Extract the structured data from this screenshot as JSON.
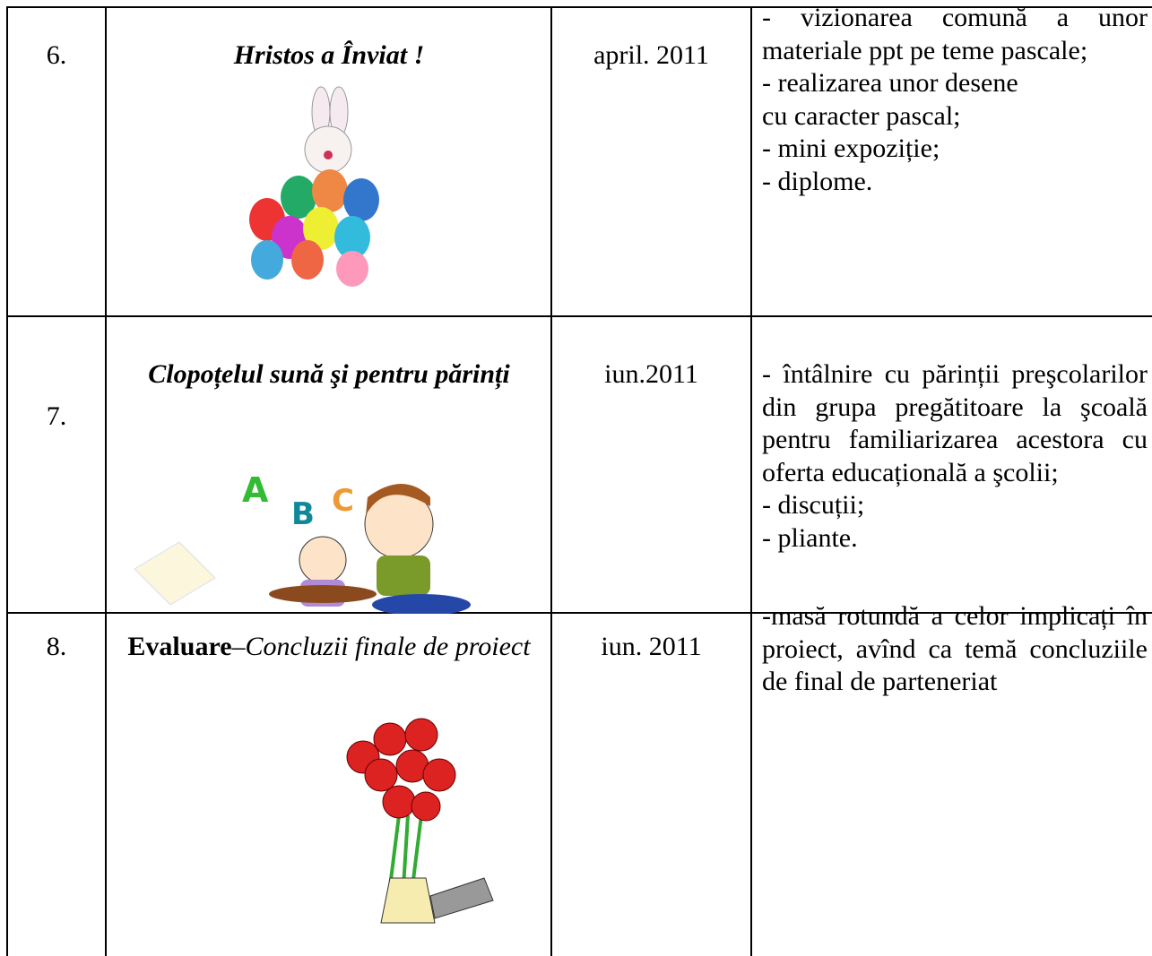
{
  "table": {
    "rows": [
      {
        "number": "6.",
        "title": "Hristos a Înviat !",
        "date": "april. 2011",
        "activities": [
          "- vizionarea comună a unor materiale ppt pe teme pascale;",
          "- realizarea unor desene",
          "cu caracter pascal;",
          "- mini expoziție;",
          "- diplome."
        ]
      },
      {
        "number": "7.",
        "title": "Clopoțelul sună şi pentru părinți",
        "date": "iun.2011",
        "activities": [
          "- întâlnire cu părinții preşcolarilor din grupa pregătitoare la şcoală pentru familiarizarea acestora cu oferta educațională a şcolii;",
          "- discuții;",
          "- pliante."
        ]
      },
      {
        "number": "8.",
        "title_bold": "Evaluare",
        "title_italic": "–Concluzii finale de proiect",
        "date": "iun. 2011",
        "activities": [
          "-masă rotundă a celor implicați în proiect, avînd ca temă concluziile de final de parteneriat"
        ]
      }
    ]
  }
}
